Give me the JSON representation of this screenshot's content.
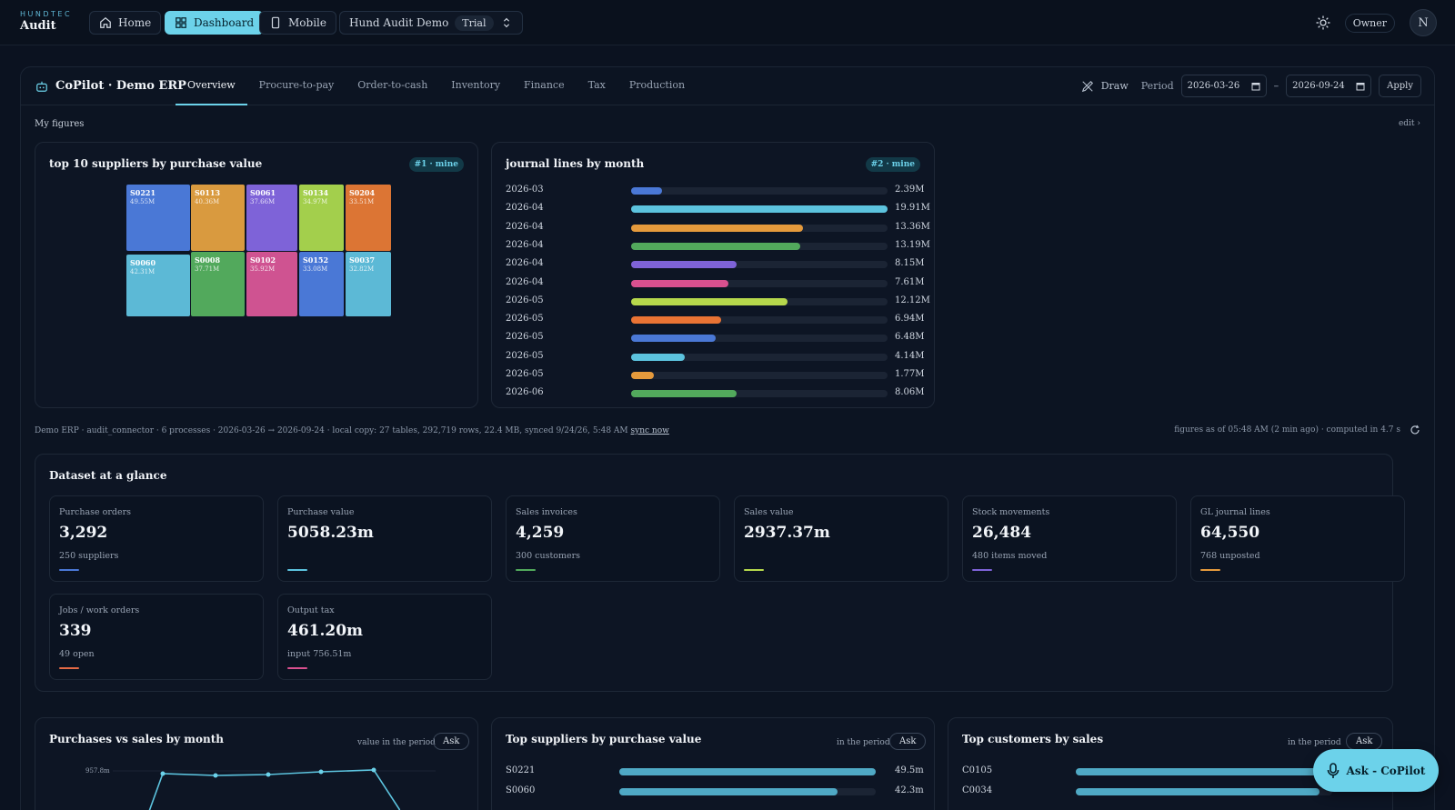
{
  "brand": {
    "small": "HUNDTEC",
    "big": "Audit"
  },
  "nav": {
    "home": "Home",
    "dashboard": "Dashboard",
    "mobile": "Mobile",
    "workspace": "Hund Audit Demo",
    "trial": "Trial"
  },
  "user": {
    "role": "Owner",
    "initial": "N"
  },
  "panel": {
    "title": "CoPilot · Demo ERP",
    "tabs": [
      "Overview",
      "Procure-to-pay",
      "Order-to-cash",
      "Inventory",
      "Finance",
      "Tax",
      "Production"
    ],
    "draw": "Draw",
    "period_label": "Period",
    "date_from": "2026-03-26",
    "date_sep": "–",
    "date_to": "2026-09-24",
    "apply": "Apply"
  },
  "my_figures": {
    "label": "My figures",
    "edit": "edit ›"
  },
  "treemap": {
    "title": "top 10 suppliers by purchase value",
    "badge": "#1 · mine",
    "cells": [
      {
        "id": "S0221",
        "value": "49.55M",
        "color": "#4a78d6"
      },
      {
        "id": "S0113",
        "value": "40.36M",
        "color": "#d99a3f"
      },
      {
        "id": "S0061",
        "value": "37.66M",
        "color": "#7e63d8"
      },
      {
        "id": "S0134",
        "value": "34.97M",
        "color": "#a3cf4c"
      },
      {
        "id": "S0204",
        "value": "33.51M",
        "color": "#dc7534"
      },
      {
        "id": "S0060",
        "value": "42.31M",
        "color": "#5cb9d6"
      },
      {
        "id": "S0008",
        "value": "37.71M",
        "color": "#52a95c"
      },
      {
        "id": "S0102",
        "value": "35.92M",
        "color": "#cf5391"
      },
      {
        "id": "S0152",
        "value": "33.08M",
        "color": "#4a78d6"
      },
      {
        "id": "S0037",
        "value": "32.82M",
        "color": "#5cb9d6"
      }
    ]
  },
  "journal": {
    "title": "journal lines by month",
    "badge": "#2 · mine",
    "rows": [
      {
        "label": "2026-03",
        "value": "2.39M",
        "frac": 0.12,
        "color": "#4a78d6"
      },
      {
        "label": "2026-04",
        "value": "19.91M",
        "frac": 1.0,
        "color": "#5cc3de"
      },
      {
        "label": "2026-04",
        "value": "13.36M",
        "frac": 0.67,
        "color": "#e59a3c"
      },
      {
        "label": "2026-04",
        "value": "13.19M",
        "frac": 0.66,
        "color": "#52a95c"
      },
      {
        "label": "2026-04",
        "value": "8.15M",
        "frac": 0.41,
        "color": "#7e63d8"
      },
      {
        "label": "2026-04",
        "value": "7.61M",
        "frac": 0.38,
        "color": "#d9508f"
      },
      {
        "label": "2026-05",
        "value": "12.12M",
        "frac": 0.61,
        "color": "#b6d84c"
      },
      {
        "label": "2026-05",
        "value": "6.94M",
        "frac": 0.35,
        "color": "#e97334"
      },
      {
        "label": "2026-05",
        "value": "6.48M",
        "frac": 0.33,
        "color": "#4a78d6"
      },
      {
        "label": "2026-05",
        "value": "4.14M",
        "frac": 0.21,
        "color": "#5cc3de"
      },
      {
        "label": "2026-05",
        "value": "1.77M",
        "frac": 0.09,
        "color": "#e59a3c"
      },
      {
        "label": "2026-06",
        "value": "8.06M",
        "frac": 0.41,
        "color": "#52a95c"
      }
    ]
  },
  "info": {
    "line": "Demo ERP · audit_connector · 6 processes · 2026-03-26 → 2026-09-24 · local copy: 27 tables, 292,719 rows, 22.4 MB, synced 9/24/26, 5:48 AM",
    "sync": "sync now",
    "right": "figures as of 05:48 AM (2 min ago) · computed in 4.7 s"
  },
  "dataset": {
    "title": "Dataset at a glance",
    "kpis": [
      {
        "label": "Purchase orders",
        "value": "3,292",
        "sub": "250 suppliers",
        "color": "#4a78d6"
      },
      {
        "label": "Purchase value",
        "value": "5058.23m",
        "sub": "",
        "color": "#5cc3de"
      },
      {
        "label": "Sales invoices",
        "value": "4,259",
        "sub": "300 customers",
        "color": "#52a95c"
      },
      {
        "label": "Sales value",
        "value": "2937.37m",
        "sub": "",
        "color": "#b6d84c"
      },
      {
        "label": "Stock movements",
        "value": "26,484",
        "sub": "480 items moved",
        "color": "#7e63d8"
      },
      {
        "label": "GL journal lines",
        "value": "64,550",
        "sub": "768 unposted",
        "color": "#e59a3c"
      },
      {
        "label": "Jobs / work orders",
        "value": "339",
        "sub": "49 open",
        "color": "#e46a45"
      },
      {
        "label": "Output tax",
        "value": "461.20m",
        "sub": "input 756.51m",
        "color": "#d9508f"
      }
    ]
  },
  "bottom": {
    "purch_sales": {
      "title": "Purchases vs sales by month",
      "sub": "value in the period",
      "ask": "Ask",
      "ytick": "957.8m"
    },
    "top_suppliers": {
      "title": "Top suppliers by purchase value",
      "sub": "in the period",
      "ask": "Ask",
      "rows": [
        {
          "label": "S0221",
          "value": "49.5m",
          "frac": 1.0
        },
        {
          "label": "S0060",
          "value": "42.3m",
          "frac": 0.85
        }
      ]
    },
    "top_customers": {
      "title": "Top customers by sales",
      "sub": "in the period",
      "ask": "Ask",
      "rows": [
        {
          "label": "C0105",
          "frac": 1.0
        },
        {
          "label": "C0034",
          "frac": 0.95
        }
      ]
    }
  },
  "copilot": {
    "label": "Ask - CoPilot"
  }
}
